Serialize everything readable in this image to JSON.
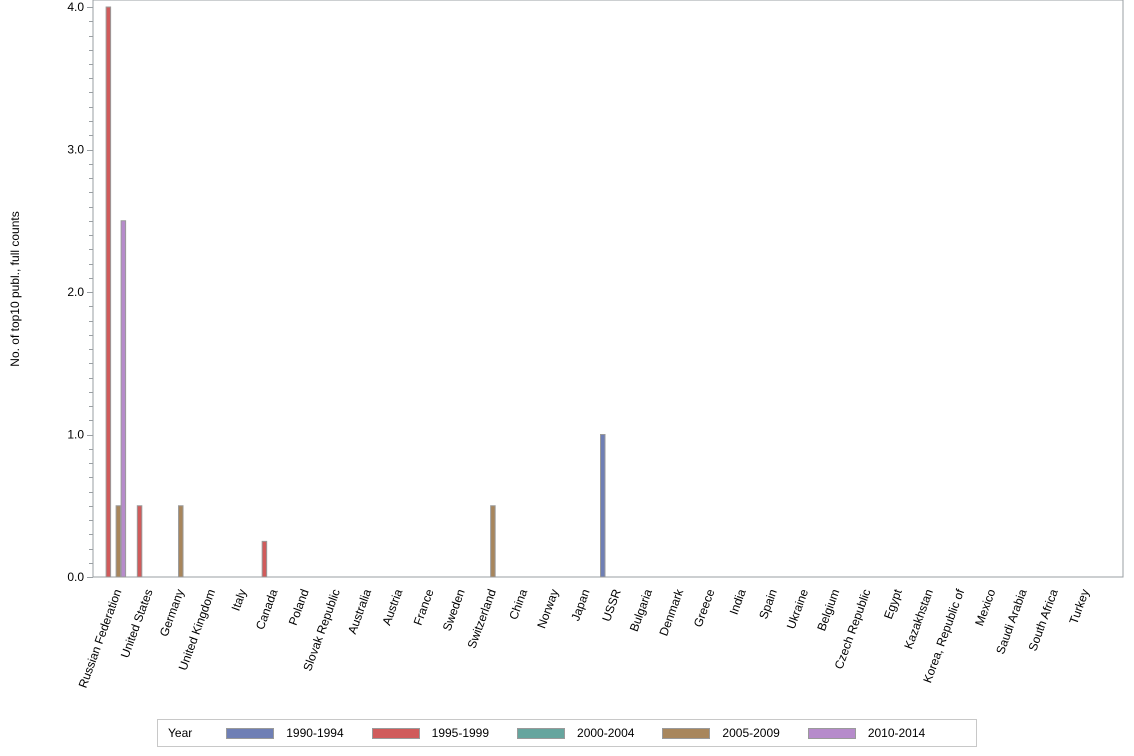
{
  "chart_data": {
    "type": "bar",
    "title": "",
    "xlabel": "",
    "ylabel": "No. of top10 publ., full counts",
    "ylim": [
      0,
      4.0
    ],
    "yticks": [
      "0.0",
      "1.0",
      "2.0",
      "3.0",
      "4.0"
    ],
    "grid": false,
    "legend_position": "bottom",
    "legend_title": "Year",
    "categories": [
      "Russian Federation",
      "United States",
      "Germany",
      "United Kingdom",
      "Italy",
      "Canada",
      "Poland",
      "Slovak Republic",
      "Australia",
      "Austria",
      "France",
      "Sweden",
      "Switzerland",
      "China",
      "Norway",
      "Japan",
      "USSR",
      "Bulgaria",
      "Denmark",
      "Greece",
      "India",
      "Spain",
      "Ukraine",
      "Belgium",
      "Czech Republic",
      "Egypt",
      "Kazakhstan",
      "Korea, Republic of",
      "Mexico",
      "Saudi Arabia",
      "South Africa",
      "Turkey"
    ],
    "series": [
      {
        "name": "1990-1994",
        "color": "#6f7fb5",
        "values": [
          0,
          0,
          0,
          0,
          0,
          0,
          0,
          0,
          0,
          0,
          0,
          0,
          0,
          0,
          0,
          0,
          1.0,
          0,
          0,
          0,
          0,
          0,
          0,
          0,
          0,
          0,
          0,
          0,
          0,
          0,
          0,
          0
        ]
      },
      {
        "name": "1995-1999",
        "color": "#d05b5b",
        "values": [
          4.0,
          0.5,
          0,
          0,
          0,
          0.25,
          0,
          0,
          0,
          0,
          0,
          0,
          0,
          0,
          0,
          0,
          0,
          0,
          0,
          0,
          0,
          0,
          0,
          0,
          0,
          0,
          0,
          0,
          0,
          0,
          0,
          0
        ]
      },
      {
        "name": "2000-2004",
        "color": "#66a59e",
        "values": [
          0,
          0,
          0,
          0,
          0,
          0,
          0,
          0,
          0,
          0,
          0,
          0,
          0,
          0,
          0,
          0,
          0,
          0,
          0,
          0,
          0,
          0,
          0,
          0,
          0,
          0,
          0,
          0,
          0,
          0,
          0,
          0
        ]
      },
      {
        "name": "2005-2009",
        "color": "#a8865c",
        "values": [
          0.5,
          0,
          0.5,
          0,
          0,
          0,
          0,
          0,
          0,
          0,
          0,
          0,
          0.5,
          0,
          0,
          0,
          0,
          0,
          0,
          0,
          0,
          0,
          0,
          0,
          0,
          0,
          0,
          0,
          0,
          0,
          0,
          0
        ]
      },
      {
        "name": "2010-2014",
        "color": "#b68bcb",
        "values": [
          2.5,
          0,
          0,
          0,
          0,
          0,
          0,
          0,
          0,
          0,
          0,
          0,
          0,
          0,
          0,
          0,
          0,
          0,
          0,
          0,
          0,
          0,
          0,
          0,
          0,
          0,
          0,
          0,
          0,
          0,
          0,
          0
        ]
      }
    ]
  }
}
